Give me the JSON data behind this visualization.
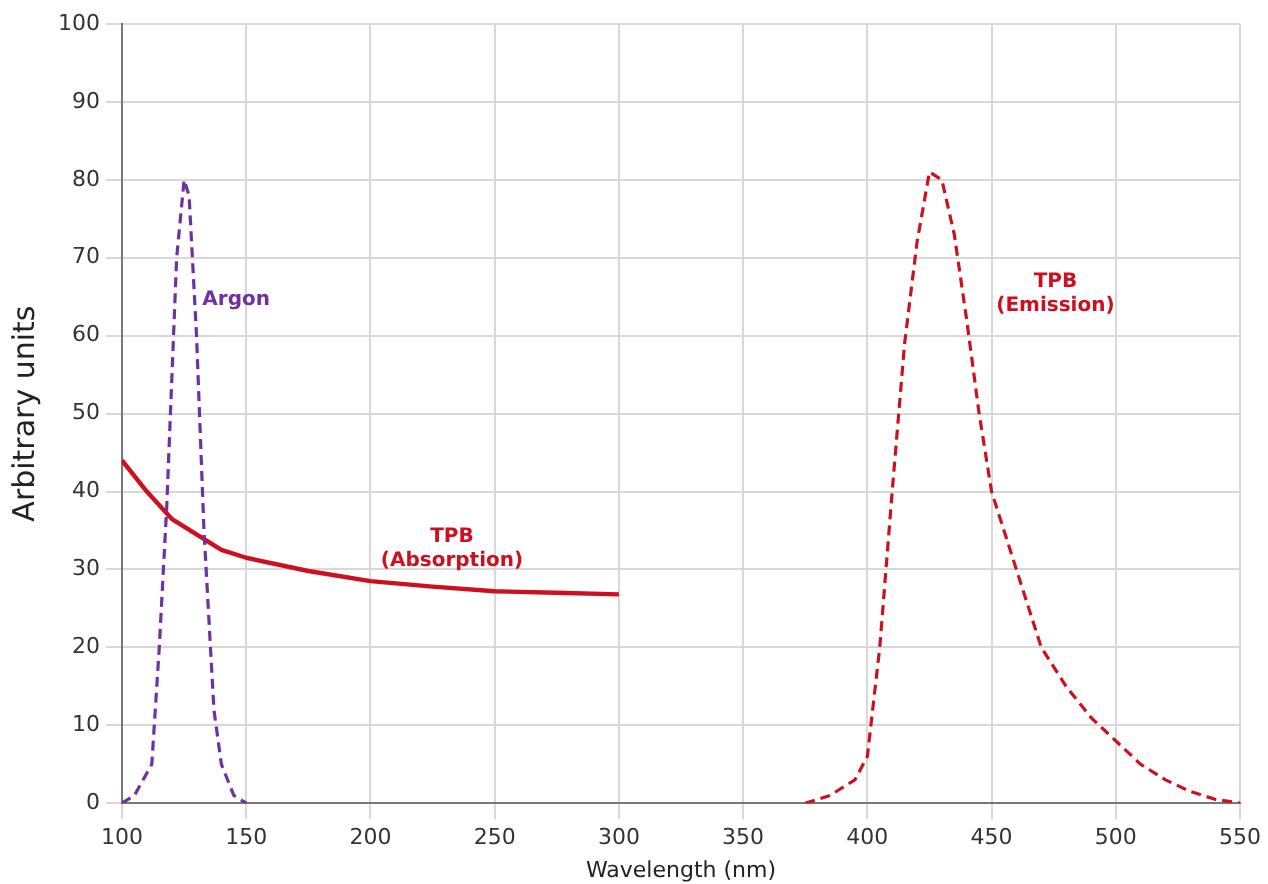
{
  "chart_data": {
    "type": "line",
    "xlabel": "Wavelength (nm)",
    "ylabel": "Arbitrary units",
    "xlim": [
      100,
      550
    ],
    "xticks": [
      100,
      150,
      200,
      250,
      300,
      350,
      400,
      450,
      500,
      550
    ],
    "ylim": [
      0,
      100
    ],
    "yticks": [
      0,
      10,
      20,
      30,
      40,
      50,
      60,
      70,
      80,
      90,
      100
    ],
    "grid": true,
    "legend": false,
    "marker": "none",
    "series": [
      {
        "name": "Argon",
        "color": "#7030a0",
        "line_style": "dashed",
        "x": [
          100,
          105,
          112,
          115,
          118,
          122,
          125,
          127,
          130,
          133,
          137,
          140,
          145,
          150
        ],
        "values": [
          0,
          1,
          5,
          20,
          38,
          70,
          80,
          78,
          60,
          35,
          12,
          5,
          1,
          0
        ]
      },
      {
        "name": "TPB (Absorption)",
        "color": "#cc1020",
        "line_style": "solid",
        "x": [
          100,
          110,
          120,
          130,
          140,
          150,
          175,
          200,
          225,
          250,
          275,
          300
        ],
        "values": [
          44,
          40,
          36.5,
          34.5,
          32.5,
          31.5,
          29.8,
          28.5,
          27.8,
          27.2,
          27,
          26.8
        ]
      },
      {
        "name": "TPB (Emission)",
        "color": "#cc1020",
        "line_style": "dashed",
        "x": [
          375,
          385,
          395,
          400,
          405,
          410,
          415,
          420,
          425,
          430,
          435,
          440,
          445,
          450,
          460,
          470,
          480,
          490,
          500,
          510,
          520,
          530,
          540,
          550
        ],
        "values": [
          0,
          1,
          3,
          6,
          20,
          40,
          59,
          72,
          81,
          80,
          73,
          62,
          50,
          40,
          30,
          20,
          15,
          11,
          8,
          5,
          3,
          1.5,
          0.5,
          0
        ]
      }
    ]
  }
}
